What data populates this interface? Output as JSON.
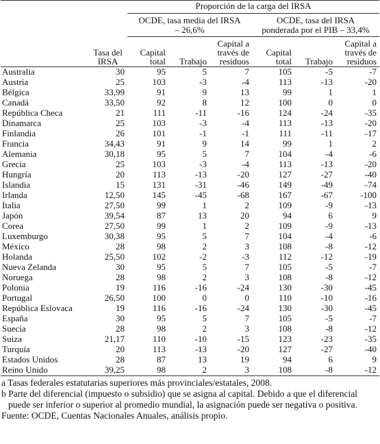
{
  "table": {
    "header": {
      "group_title": "Proporción de la carga del IRSA",
      "group_a": "OCDE, tasa media del IRSA – 26,6%",
      "group_b": "OCDE, tasa del IRSA ponderada por el PIB – 33,4%",
      "columns": [
        "Tasa del IRSA",
        "Capital total",
        "Trabajo",
        "Capital a través de residuos",
        "Capital total",
        "Trabajo",
        "Capital a través de residuos"
      ]
    },
    "rows": [
      [
        "Australia",
        "30",
        "95",
        "5",
        "7",
        "105",
        "-5",
        "-7"
      ],
      [
        "Austria",
        "25",
        "103",
        "-3",
        "-4",
        "113",
        "-13",
        "-20"
      ],
      [
        "Bélgica",
        "33,99",
        "91",
        "9",
        "13",
        "99",
        "1",
        "1"
      ],
      [
        "Canadá",
        "33,50",
        "92",
        "8",
        "12",
        "100",
        "0",
        "0"
      ],
      [
        "República Checa",
        "21",
        "111",
        "-11",
        "-16",
        "124",
        "-24",
        "-35"
      ],
      [
        "Dinamarca",
        "25",
        "103",
        "-3",
        "-4",
        "113",
        "-13",
        "-20"
      ],
      [
        "Finlandia",
        "26",
        "101",
        "-1",
        "-1",
        "111",
        "-11",
        "-17"
      ],
      [
        "Francia",
        "34,43",
        "91",
        "9",
        "14",
        "99",
        "1",
        "2"
      ],
      [
        "Alemania",
        "30,18",
        "95",
        "5",
        "7",
        "104",
        "-4",
        "-6"
      ],
      [
        "Grecia",
        "25",
        "103",
        "-3",
        "-4",
        "113",
        "-13",
        "-20"
      ],
      [
        "Hungría",
        "20",
        "113",
        "-13",
        "-20",
        "127",
        "-27",
        "-40"
      ],
      [
        "Islandia",
        "15",
        "131",
        "-31",
        "-46",
        "149",
        "-49",
        "-74"
      ],
      [
        "Irlanda",
        "12,50",
        "145",
        "-45",
        "-68",
        "167",
        "-67",
        "-100"
      ],
      [
        "Italia",
        "27,50",
        "99",
        "1",
        "2",
        "109",
        "-9",
        "-13"
      ],
      [
        "Japón",
        "39,54",
        "87",
        "13",
        "20",
        "94",
        "6",
        "9"
      ],
      [
        "Corea",
        "27,50",
        "99",
        "1",
        "2",
        "109",
        "-9",
        "-13"
      ],
      [
        "Luxemburgo",
        "30,38",
        "95",
        "5",
        "7",
        "104",
        "-4",
        "-6"
      ],
      [
        "México",
        "28",
        "98",
        "2",
        "3",
        "108",
        "-8",
        "-12"
      ],
      [
        "Holanda",
        "25,50",
        "102",
        "-2",
        "-3",
        "112",
        "-12",
        "-19"
      ],
      [
        "Nueva Zelanda",
        "30",
        "95",
        "5",
        "7",
        "105",
        "-5",
        "-7"
      ],
      [
        "Noruega",
        "28",
        "98",
        "2",
        "3",
        "108",
        "-8",
        "-12"
      ],
      [
        "Polonia",
        "19",
        "116",
        "-16",
        "-24",
        "130",
        "-30",
        "-45"
      ],
      [
        "Portugal",
        "26,50",
        "100",
        "0",
        "0",
        "110",
        "-10",
        "-16"
      ],
      [
        "República Eslovaca",
        "19",
        "116",
        "-16",
        "-24",
        "130",
        "-30",
        "-45"
      ],
      [
        "España",
        "30",
        "95",
        "5",
        "7",
        "105",
        "-5",
        "-7"
      ],
      [
        "Suecia",
        "28",
        "98",
        "2",
        "3",
        "108",
        "-8",
        "-12"
      ],
      [
        "Suiza",
        "21,17",
        "110",
        "-10",
        "-15",
        "123",
        "-23",
        "-35"
      ],
      [
        "Turquía",
        "20",
        "113",
        "-13",
        "-20",
        "127",
        "-27",
        "-40"
      ],
      [
        "Estados Unidos",
        "28",
        "87",
        "13",
        "19",
        "94",
        "6",
        "9"
      ],
      [
        "Reino Unido",
        "39,25",
        "98",
        "2",
        "3",
        "108",
        "-8",
        "-12"
      ]
    ]
  },
  "footnotes": [
    {
      "marker": "a",
      "text": "Tasas federales estatutarias superiores más provinciales/estatales, 2008."
    },
    {
      "marker": "b",
      "text": "Parte del diferencial (impuesto o subsidio) que se asigna al capital. Debido a que el diferencial puede ser inferior o superior al promedio mundial, la asignación puede ser negativa o positiva."
    }
  ],
  "source": "Fuente: OCDE, Cuentas Nacionales Anuales, análisis propio."
}
